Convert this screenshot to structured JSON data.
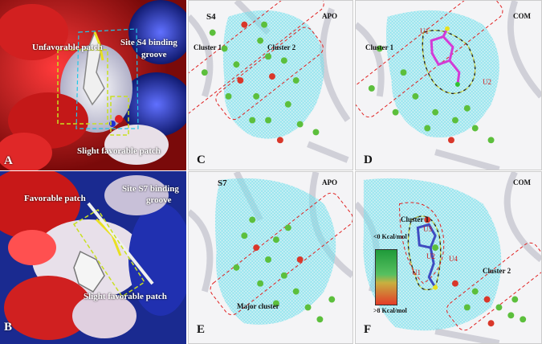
{
  "panels": {
    "A": {
      "letter": "A",
      "labels": {
        "unfavorable": "Unfavorable patch",
        "site": "Site S4 binding",
        "groove": "groove",
        "slight": "Slight favorable patch"
      }
    },
    "B": {
      "letter": "B",
      "labels": {
        "favorable": "Favorable patch",
        "site": "Site S7 binding",
        "groove": "groove",
        "slight": "Slight favorable patch"
      }
    },
    "C": {
      "letter": "C",
      "site": "S4",
      "state": "APO",
      "cluster1": "Cluster 1",
      "cluster2": "Cluster 2"
    },
    "D": {
      "letter": "D",
      "state": "COM",
      "cluster1": "Cluster 1",
      "u1": "U1",
      "u2": "U2"
    },
    "E": {
      "letter": "E",
      "site": "S7",
      "state": "APO",
      "major": "Major cluster"
    },
    "F": {
      "letter": "F",
      "state": "COM",
      "cluster1": "Cluster 1",
      "cluster2": "Cluster 2",
      "legend_top": "<0 Kcal/mol",
      "legend_bottom": ">8 Kcal/mol",
      "u1": "U1",
      "u2": "U2",
      "u3": "U3",
      "u4": "U4"
    }
  },
  "colors": {
    "mesh": "#7fe8f0",
    "green_sphere": "#5cbf3c",
    "red_sphere": "#d9372a",
    "ligand": "#d33bd6",
    "ligand_f": "#3f4cc0",
    "box_red": "#e02020",
    "box_yellow": "#d8d820",
    "box_cyan": "#20c8e8"
  }
}
